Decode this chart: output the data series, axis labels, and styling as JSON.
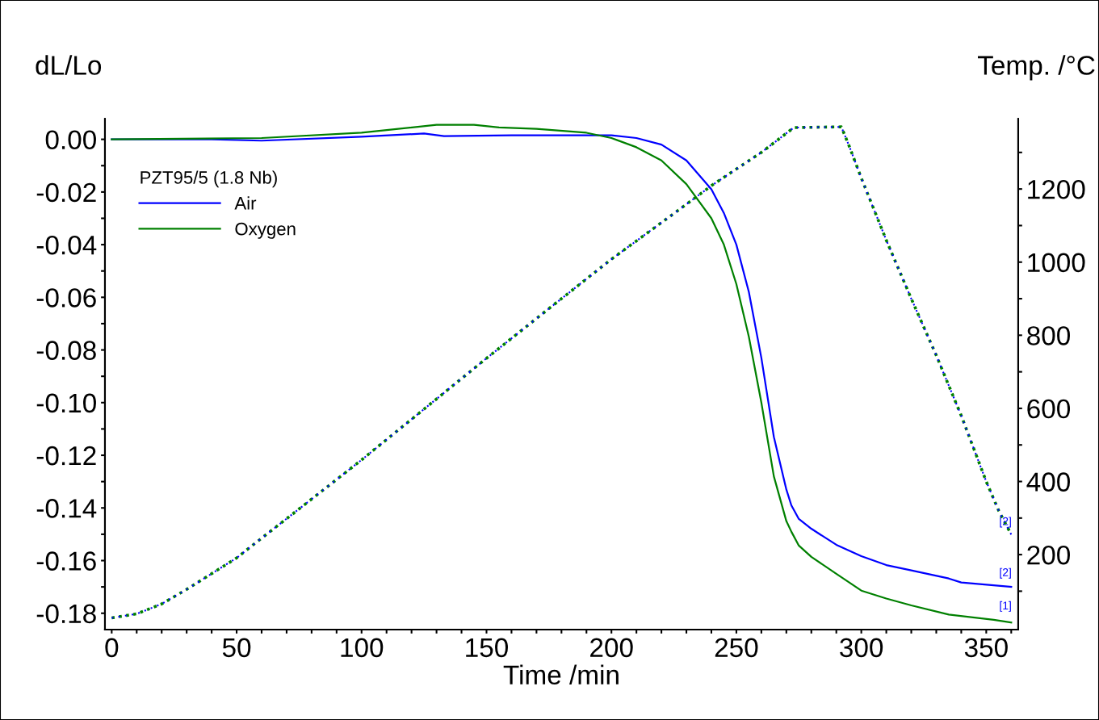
{
  "chart_data": {
    "type": "line",
    "xlabel": "Time /min",
    "ylabel": "dL/Lo",
    "y2label": "Temp. /°C",
    "legend_title": "PZT95/5 (1.8 Nb)",
    "legend": "top left",
    "grid": false,
    "marker": "none",
    "xlim": [
      -2.7,
      362.8
    ],
    "ylim": [
      -0.1862,
      0.0078
    ],
    "y2lim": [
      -5,
      1392
    ],
    "xticks": [
      0,
      {
        "value": 10,
        "label": null
      },
      {
        "value": 20,
        "label": null
      },
      {
        "value": 30,
        "label": null
      },
      {
        "value": 40,
        "label": null
      },
      50,
      {
        "value": 60,
        "label": null
      },
      {
        "value": 70,
        "label": null
      },
      {
        "value": 80,
        "label": null
      },
      {
        "value": 90,
        "label": null
      },
      100,
      {
        "value": 110,
        "label": null
      },
      {
        "value": 120,
        "label": null
      },
      {
        "value": 130,
        "label": null
      },
      {
        "value": 140,
        "label": null
      },
      150,
      {
        "value": 160,
        "label": null
      },
      {
        "value": 170,
        "label": null
      },
      {
        "value": 180,
        "label": null
      },
      {
        "value": 190,
        "label": null
      },
      200,
      {
        "value": 210,
        "label": null
      },
      {
        "value": 220,
        "label": null
      },
      {
        "value": 230,
        "label": null
      },
      {
        "value": 240,
        "label": null
      },
      250,
      {
        "value": 260,
        "label": null
      },
      {
        "value": 270,
        "label": null
      },
      {
        "value": 280,
        "label": null
      },
      {
        "value": 290,
        "label": null
      },
      300,
      {
        "value": 310,
        "label": null
      },
      {
        "value": 320,
        "label": null
      },
      {
        "value": 330,
        "label": null
      },
      {
        "value": 340,
        "label": null
      },
      350,
      {
        "value": 360,
        "label": null
      }
    ],
    "yticks": [
      {
        "value": 0,
        "label": "0.00"
      },
      {
        "value": -0.01,
        "label": null
      },
      {
        "value": -0.02,
        "label": "-0.02"
      },
      {
        "value": -0.03,
        "label": null
      },
      {
        "value": -0.04,
        "label": "-0.04"
      },
      {
        "value": -0.05,
        "label": null
      },
      {
        "value": -0.06,
        "label": "-0.06"
      },
      {
        "value": -0.07,
        "label": null
      },
      {
        "value": -0.08,
        "label": "-0.08"
      },
      {
        "value": -0.09,
        "label": null
      },
      {
        "value": -0.1,
        "label": "-0.10"
      },
      {
        "value": -0.11,
        "label": null
      },
      {
        "value": -0.12,
        "label": "-0.12"
      },
      {
        "value": -0.13,
        "label": null
      },
      {
        "value": -0.14,
        "label": "-0.14"
      },
      {
        "value": -0.15,
        "label": null
      },
      {
        "value": -0.16,
        "label": "-0.16"
      },
      {
        "value": -0.17,
        "label": null
      },
      {
        "value": -0.18,
        "label": "-0.18"
      }
    ],
    "y2ticks": [
      {
        "value": 100,
        "label": null
      },
      200,
      {
        "value": 300,
        "label": null
      },
      400,
      {
        "value": 500,
        "label": null
      },
      600,
      {
        "value": 700,
        "label": null
      },
      800,
      {
        "value": 900,
        "label": null
      },
      1000,
      {
        "value": 1100,
        "label": null
      },
      1200,
      {
        "value": 1300,
        "label": null
      }
    ],
    "series": [
      {
        "name": "Air",
        "color": "#0000ff",
        "line_style": "solid",
        "x": [
          0,
          40,
          60,
          100,
          125,
          133,
          160,
          200,
          210,
          220,
          230,
          240,
          245,
          250,
          255,
          260,
          265,
          270,
          272,
          275,
          280,
          290,
          300,
          310,
          320,
          335,
          340,
          360
        ],
        "values": [
          0,
          0,
          -0.0005,
          0.001,
          0.0022,
          0.0012,
          0.0015,
          0.0015,
          0.0005,
          -0.002,
          -0.008,
          -0.019,
          -0.028,
          -0.04,
          -0.058,
          -0.083,
          -0.113,
          -0.133,
          -0.139,
          -0.1442,
          -0.1479,
          -0.154,
          -0.1583,
          -0.1617,
          -0.1637,
          -0.1668,
          -0.1683,
          -0.17
        ]
      },
      {
        "name": "Oxygen",
        "color": "#008000",
        "line_style": "solid",
        "x": [
          0,
          60,
          100,
          130,
          145,
          155,
          170,
          190,
          200,
          210,
          220,
          230,
          240,
          245,
          250,
          255,
          260,
          265,
          270,
          272,
          275,
          280,
          290,
          300,
          310,
          320,
          335,
          353,
          360
        ],
        "values": [
          0,
          0.0005,
          0.0025,
          0.0055,
          0.0055,
          0.0045,
          0.004,
          0.0025,
          0.0005,
          -0.003,
          -0.008,
          -0.017,
          -0.03,
          -0.04,
          -0.055,
          -0.075,
          -0.1,
          -0.128,
          -0.145,
          -0.149,
          -0.1543,
          -0.1586,
          -0.165,
          -0.1714,
          -0.1744,
          -0.177,
          -0.1805,
          -0.1825,
          -0.1835
        ]
      },
      {
        "color": "#0000ff",
        "axis": "y2",
        "line_style": "dotted",
        "x": [
          0,
          10,
          20,
          30,
          40,
          50,
          60,
          75,
          100,
          125,
          150,
          175,
          200,
          225,
          240,
          260,
          273,
          292,
          295,
          300,
          310,
          320,
          330,
          340,
          350,
          355,
          360
        ],
        "values": [
          27,
          38,
          65,
          105,
          148,
          191,
          245,
          325,
          459,
          598,
          737,
          873,
          1008,
          1133,
          1209,
          1300,
          1368,
          1370,
          1320,
          1230,
          1060,
          900,
          745,
          580,
          400,
          320,
          255
        ]
      },
      {
        "color": "#008000",
        "axis": "y2",
        "line_style": "dotted",
        "x": [
          0,
          10,
          20,
          30,
          40,
          50,
          60,
          75,
          100,
          125,
          150,
          175,
          200,
          225,
          240,
          260,
          273,
          292,
          295,
          300,
          310,
          320,
          330,
          340,
          350,
          355,
          360
        ],
        "values": [
          27,
          38,
          65,
          105,
          148,
          191,
          245,
          325,
          459,
          598,
          737,
          873,
          1008,
          1133,
          1209,
          1300,
          1368,
          1370,
          1320,
          1230,
          1060,
          900,
          745,
          580,
          400,
          320,
          255
        ]
      }
    ],
    "annotations": [
      "[2]",
      "[2]",
      "[1]"
    ]
  }
}
